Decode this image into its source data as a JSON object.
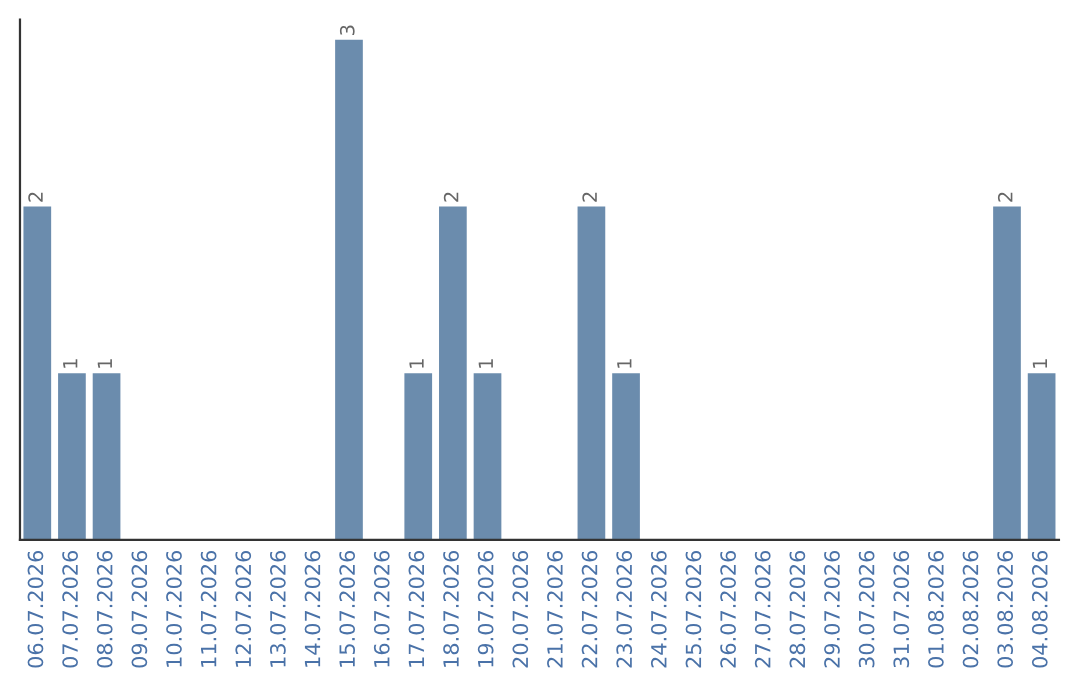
{
  "chart_data": {
    "type": "bar",
    "categories": [
      "06.07.2026",
      "07.07.2026",
      "08.07.2026",
      "09.07.2026",
      "10.07.2026",
      "11.07.2026",
      "12.07.2026",
      "13.07.2026",
      "14.07.2026",
      "15.07.2026",
      "16.07.2026",
      "17.07.2026",
      "18.07.2026",
      "19.07.2026",
      "20.07.2026",
      "21.07.2026",
      "22.07.2026",
      "23.07.2026",
      "24.07.2026",
      "25.07.2026",
      "26.07.2026",
      "27.07.2026",
      "28.07.2026",
      "29.07.2026",
      "30.07.2026",
      "31.07.2026",
      "01.08.2026",
      "02.08.2026",
      "03.08.2026",
      "04.08.2026"
    ],
    "values": [
      2,
      1,
      1,
      0,
      0,
      0,
      0,
      0,
      0,
      3,
      0,
      1,
      2,
      1,
      0,
      0,
      2,
      1,
      0,
      0,
      0,
      0,
      0,
      0,
      0,
      0,
      0,
      0,
      2,
      1
    ],
    "value_labels": [
      "2",
      "1",
      "1",
      null,
      null,
      null,
      null,
      null,
      null,
      "3",
      null,
      "1",
      "2",
      "1",
      null,
      null,
      "2",
      "1",
      null,
      null,
      null,
      null,
      null,
      null,
      null,
      null,
      null,
      null,
      "2",
      "1"
    ],
    "color": "#6b8cad",
    "ylim": [
      0,
      3.12
    ],
    "tick_labels": "x",
    "grid": false,
    "legend": false
  }
}
